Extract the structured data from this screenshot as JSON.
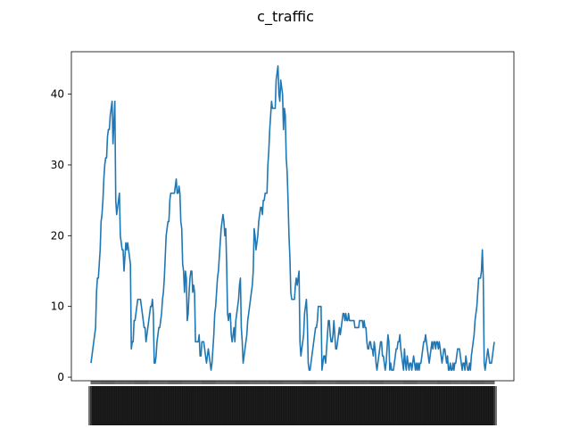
{
  "chart_data": {
    "type": "line",
    "title": "c_traffic",
    "xlabel": "",
    "ylabel": "",
    "ylim": [
      -0.5,
      46
    ],
    "yticks": [
      0,
      10,
      20,
      30,
      40
    ],
    "grid": false,
    "legend": "none",
    "x_tick_labels_note": "dense overlapping vertical labels",
    "series": [
      {
        "color": "#1f77b4",
        "values": [
          2,
          3,
          4,
          5,
          6,
          7,
          12,
          14,
          14,
          16,
          18,
          22,
          23,
          25,
          28,
          30,
          31,
          31,
          34,
          35,
          35,
          37,
          38,
          39,
          33,
          36,
          39,
          25,
          23,
          24,
          25,
          26,
          20,
          19,
          18,
          18,
          15,
          17,
          19,
          18,
          19,
          18,
          17,
          16,
          4,
          5,
          5,
          8,
          8,
          9,
          10,
          11,
          11,
          11,
          11,
          10,
          9,
          8,
          7,
          7,
          5,
          6,
          7,
          8,
          9,
          10,
          10,
          11,
          9,
          2,
          2,
          3,
          5,
          6,
          7,
          7,
          8,
          9,
          11,
          12,
          14,
          17,
          20,
          21,
          22,
          22,
          25,
          26,
          26,
          26,
          26,
          26,
          27,
          28,
          26,
          26,
          27,
          26,
          22,
          21,
          16,
          15,
          12,
          15,
          14,
          8,
          9,
          12,
          14,
          15,
          15,
          12,
          13,
          12,
          5,
          5,
          5,
          5,
          6,
          3,
          3,
          5,
          5,
          5,
          4,
          3,
          2,
          3,
          4,
          3,
          2,
          1,
          2,
          4,
          6,
          9,
          10,
          12,
          14,
          15,
          17,
          19,
          21,
          22,
          23,
          22,
          20,
          21,
          16,
          9,
          8,
          9,
          9,
          6,
          5,
          6,
          7,
          5,
          8,
          9,
          10,
          11,
          13,
          14,
          7,
          5,
          2,
          3,
          4,
          5,
          6,
          8,
          9,
          10,
          11,
          12,
          13,
          15,
          21,
          20,
          18,
          19,
          20,
          22,
          23,
          24,
          24,
          23,
          25,
          25,
          26,
          26,
          26,
          30,
          32,
          35,
          37,
          39,
          38,
          38,
          38,
          38,
          42,
          43,
          44,
          40,
          39,
          42,
          41,
          40,
          35,
          38,
          37,
          31,
          29,
          25,
          20,
          17,
          12,
          11,
          11,
          11,
          11,
          13,
          14,
          13,
          14,
          15,
          5,
          3,
          4,
          5,
          6,
          9,
          10,
          11,
          8,
          2,
          1,
          1,
          2,
          3,
          4,
          5,
          6,
          7,
          7,
          8,
          10,
          10,
          10,
          10,
          1,
          2,
          3,
          3,
          2,
          4,
          6,
          8,
          8,
          6,
          5,
          5,
          6,
          8,
          6,
          4,
          4,
          5,
          6,
          7,
          6,
          7,
          8,
          9,
          9,
          8,
          9,
          8,
          8,
          9,
          8,
          8,
          8,
          8,
          8,
          8,
          7,
          7,
          7,
          7,
          7,
          8,
          8,
          8,
          8,
          7,
          8,
          7,
          7,
          5,
          4,
          4,
          5,
          5,
          4,
          4,
          3,
          5,
          4,
          2,
          1,
          2,
          3,
          4,
          5,
          5,
          3,
          3,
          2,
          1,
          2,
          4,
          6,
          5,
          1,
          2,
          1,
          1,
          1,
          2,
          3,
          4,
          4,
          5,
          5,
          6,
          4,
          3,
          2,
          1,
          4,
          2,
          1,
          3,
          2,
          1,
          2,
          2,
          1,
          2,
          3,
          2,
          1,
          2,
          1,
          2,
          1,
          2,
          2,
          3,
          4,
          5,
          5,
          6,
          5,
          4,
          3,
          2,
          3,
          4,
          5,
          4,
          5,
          5,
          4,
          5,
          5,
          4,
          5,
          4,
          3,
          2,
          3,
          4,
          4,
          3,
          2,
          3,
          1,
          1,
          2,
          1,
          1,
          2,
          1,
          2,
          2,
          3,
          4,
          4,
          4,
          3,
          2,
          1,
          2,
          2,
          1,
          3,
          2,
          1,
          1,
          2,
          1,
          3,
          4,
          5,
          6,
          8,
          9,
          10,
          12,
          14,
          14,
          14,
          15,
          18,
          14,
          2,
          1,
          2,
          3,
          4,
          3,
          2,
          2,
          2,
          3,
          4,
          5
        ]
      }
    ]
  }
}
